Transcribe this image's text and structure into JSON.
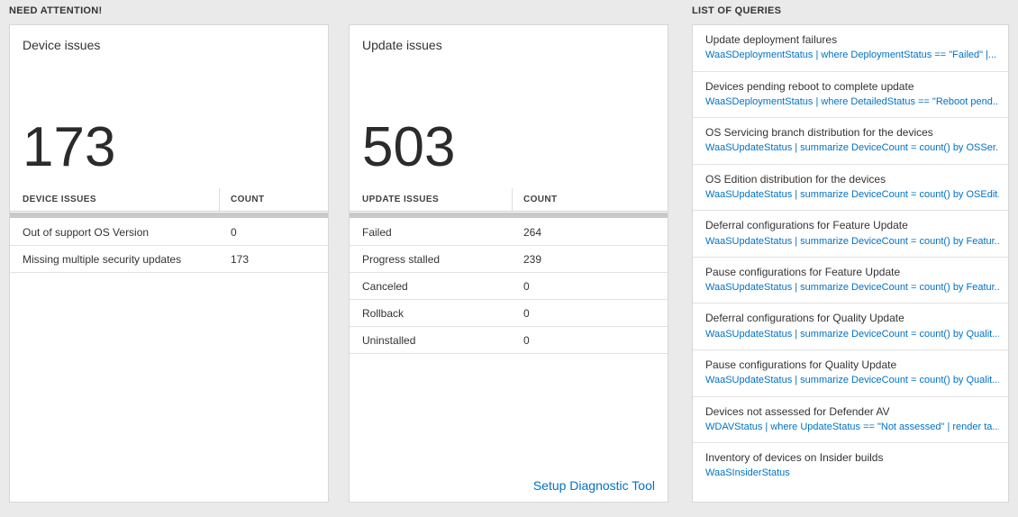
{
  "need_attention": {
    "header": "NEED ATTENTION!",
    "cards": [
      {
        "title": "Device issues",
        "big_number": "173",
        "table": {
          "columns": [
            "DEVICE ISSUES",
            "COUNT"
          ],
          "rows": [
            [
              "Out of support OS Version",
              "0"
            ],
            [
              "Missing multiple security updates",
              "173"
            ]
          ]
        }
      },
      {
        "title": "Update issues",
        "big_number": "503",
        "table": {
          "columns": [
            "UPDATE ISSUES",
            "COUNT"
          ],
          "rows": [
            [
              "Failed",
              "264"
            ],
            [
              "Progress stalled",
              "239"
            ],
            [
              "Canceled",
              "0"
            ],
            [
              "Rollback",
              "0"
            ],
            [
              "Uninstalled",
              "0"
            ]
          ]
        },
        "footer_link": "Setup Diagnostic Tool"
      }
    ]
  },
  "queries": {
    "header": "LIST OF QUERIES",
    "items": [
      {
        "title": "Update deployment failures",
        "query": "WaaSDeploymentStatus | where DeploymentStatus == \"Failed\" |..."
      },
      {
        "title": "Devices pending reboot to complete update",
        "query": "WaaSDeploymentStatus | where DetailedStatus == \"Reboot pend..."
      },
      {
        "title": "OS Servicing branch distribution for the devices",
        "query": "WaaSUpdateStatus | summarize DeviceCount = count() by OSSer..."
      },
      {
        "title": "OS Edition distribution for the devices",
        "query": "WaaSUpdateStatus | summarize DeviceCount = count() by OSEdit..."
      },
      {
        "title": "Deferral configurations for Feature Update",
        "query": "WaaSUpdateStatus | summarize DeviceCount = count() by Featur..."
      },
      {
        "title": "Pause configurations for Feature Update",
        "query": "WaaSUpdateStatus | summarize DeviceCount = count() by Featur..."
      },
      {
        "title": "Deferral configurations for Quality Update",
        "query": "WaaSUpdateStatus | summarize DeviceCount = count() by Qualit..."
      },
      {
        "title": "Pause configurations for Quality Update",
        "query": "WaaSUpdateStatus | summarize DeviceCount = count() by Qualit..."
      },
      {
        "title": "Devices not assessed for Defender AV",
        "query": "WDAVStatus | where UpdateStatus == \"Not assessed\" | render ta..."
      },
      {
        "title": "Inventory of devices on Insider builds",
        "query": "WaaSInsiderStatus"
      }
    ],
    "accent_color": "#0072c6"
  }
}
